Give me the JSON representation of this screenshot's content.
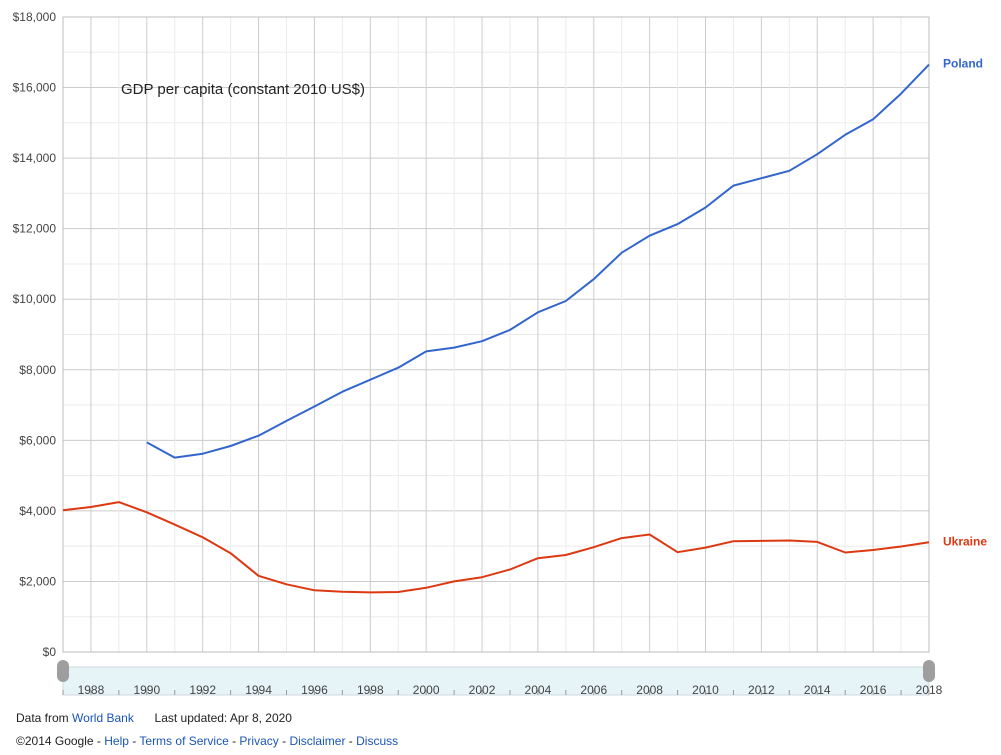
{
  "chart_data": {
    "type": "line",
    "title": "GDP per capita (constant 2010 US$)",
    "xlabel": "",
    "ylabel": "",
    "xlim": [
      1987,
      2018
    ],
    "ylim": [
      0,
      18000
    ],
    "grid": true,
    "legend": "right-end labels",
    "x_ticks": [
      1988,
      1990,
      1992,
      1994,
      1996,
      1998,
      2000,
      2002,
      2004,
      2006,
      2008,
      2010,
      2012,
      2014,
      2016,
      2018
    ],
    "x_tick_labels": [
      "1988",
      "1990",
      "1992",
      "1994",
      "1996",
      "1998",
      "2000",
      "2002",
      "2004",
      "2006",
      "2008",
      "2010",
      "2012",
      "2014",
      "2016",
      "2018"
    ],
    "y_ticks": [
      0,
      2000,
      4000,
      6000,
      8000,
      10000,
      12000,
      14000,
      16000,
      18000
    ],
    "y_tick_labels": [
      "$0",
      "$2,000",
      "$4,000",
      "$6,000",
      "$8,000",
      "$10,000",
      "$12,000",
      "$14,000",
      "$16,000",
      "$18,000"
    ],
    "series": [
      {
        "name": "Poland",
        "color": "#3366cc",
        "x": [
          1990,
          1991,
          1992,
          1993,
          1994,
          1995,
          1996,
          1997,
          1998,
          1999,
          2000,
          2001,
          2002,
          2003,
          2004,
          2005,
          2006,
          2007,
          2008,
          2009,
          2010,
          2011,
          2012,
          2013,
          2014,
          2015,
          2016,
          2017,
          2018
        ],
        "values": [
          5940,
          5510,
          5620,
          5840,
          6130,
          6550,
          6960,
          7380,
          7720,
          8060,
          8520,
          8630,
          8810,
          9130,
          9630,
          9950,
          10570,
          11320,
          11800,
          12130,
          12600,
          13220,
          13430,
          13640,
          14110,
          14660,
          15100,
          15830,
          16650
        ]
      },
      {
        "name": "Ukraine",
        "color": "#dc3912",
        "x": [
          1987,
          1988,
          1989,
          1990,
          1991,
          1992,
          1993,
          1994,
          1995,
          1996,
          1997,
          1998,
          1999,
          2000,
          2001,
          2002,
          2003,
          2004,
          2005,
          2006,
          2007,
          2008,
          2009,
          2010,
          2011,
          2012,
          2013,
          2014,
          2015,
          2016,
          2017,
          2018
        ],
        "values": [
          4020,
          4110,
          4250,
          3960,
          3610,
          3250,
          2800,
          2160,
          1920,
          1750,
          1710,
          1690,
          1700,
          1820,
          2000,
          2120,
          2340,
          2660,
          2750,
          2970,
          3230,
          3330,
          2830,
          2960,
          3140,
          3150,
          3160,
          3120,
          2820,
          2890,
          2990,
          3110
        ]
      }
    ]
  },
  "footer": {
    "data_from": "Data from",
    "source_link": "World Bank",
    "last_updated": "Last updated: Apr 8, 2020",
    "copyright": "©2014 Google",
    "sep": " - ",
    "links": [
      "Help",
      "Terms of Service",
      "Privacy",
      "Disclaimer",
      "Discuss"
    ]
  }
}
